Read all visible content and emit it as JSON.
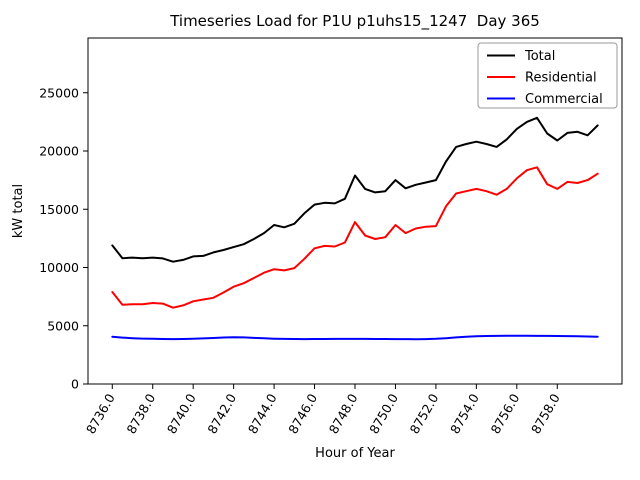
{
  "chart_data": {
    "type": "line",
    "title": "Timeseries Load for P1U p1uhs15_1247  Day 365",
    "xlabel": "Hour of Year",
    "ylabel": "kW total",
    "xlim": [
      8734.8,
      8761.2
    ],
    "ylim": [
      0,
      29700
    ],
    "xticks": [
      8736,
      8738,
      8740,
      8742,
      8744,
      8746,
      8748,
      8750,
      8752,
      8754,
      8756,
      8758
    ],
    "xtick_labels": [
      "8736.0",
      "8738.0",
      "8740.0",
      "8742.0",
      "8744.0",
      "8746.0",
      "8748.0",
      "8750.0",
      "8752.0",
      "8754.0",
      "8756.0",
      "8758.0"
    ],
    "yticks": [
      0,
      5000,
      10000,
      15000,
      20000,
      25000
    ],
    "ytick_labels": [
      "0",
      "5000",
      "10000",
      "15000",
      "20000",
      "25000"
    ],
    "grid": false,
    "legend_position": "upper right",
    "x": [
      8736,
      8736.5,
      8737,
      8737.5,
      8738,
      8738.5,
      8739,
      8739.5,
      8740,
      8740.5,
      8741,
      8741.5,
      8742,
      8742.5,
      8743,
      8743.5,
      8744,
      8744.5,
      8745,
      8745.5,
      8746,
      8746.5,
      8747,
      8747.5,
      8748,
      8748.5,
      8749,
      8749.5,
      8750,
      8750.5,
      8751,
      8751.5,
      8752,
      8752.5,
      8753,
      8753.5,
      8754,
      8754.5,
      8755,
      8755.5,
      8756,
      8756.5,
      8757,
      8757.5,
      8758,
      8758.5,
      8759,
      8759.5,
      8760
    ],
    "series": [
      {
        "name": "Total",
        "color": "#000000",
        "values": [
          11900,
          10800,
          10850,
          10800,
          10850,
          10780,
          10500,
          10650,
          10950,
          11000,
          11300,
          11500,
          11750,
          12000,
          12450,
          12950,
          13650,
          13450,
          13750,
          14650,
          15400,
          15550,
          15500,
          15900,
          17900,
          16750,
          16450,
          16550,
          17500,
          16800,
          17100,
          17300,
          17500,
          19100,
          20350,
          20600,
          20800,
          20600,
          20350,
          21000,
          21900,
          22500,
          22850,
          21500,
          20900,
          21550,
          21650,
          21350,
          22200
        ]
      },
      {
        "name": "Residential",
        "color": "#ff0000",
        "values": [
          7900,
          6800,
          6850,
          6850,
          6950,
          6900,
          6550,
          6750,
          7100,
          7250,
          7400,
          7850,
          8350,
          8650,
          9100,
          9550,
          9850,
          9750,
          9950,
          10750,
          11650,
          11850,
          11800,
          12150,
          13900,
          12750,
          12450,
          12600,
          13650,
          12950,
          13350,
          13500,
          13550,
          15250,
          16350,
          16550,
          16750,
          16550,
          16250,
          16750,
          17650,
          18350,
          18600,
          17150,
          16750,
          17350,
          17250,
          17500,
          18050
        ]
      },
      {
        "name": "Commercial",
        "color": "#0000ff",
        "values": [
          4050,
          3980,
          3930,
          3900,
          3880,
          3860,
          3850,
          3860,
          3880,
          3910,
          3950,
          3990,
          4020,
          4000,
          3960,
          3920,
          3890,
          3870,
          3860,
          3855,
          3860,
          3865,
          3870,
          3875,
          3875,
          3870,
          3865,
          3860,
          3855,
          3850,
          3845,
          3855,
          3880,
          3930,
          4000,
          4060,
          4100,
          4120,
          4130,
          4140,
          4140,
          4135,
          4130,
          4125,
          4120,
          4110,
          4100,
          4080,
          4060
        ]
      }
    ]
  },
  "colors": {
    "background": "#ffffff",
    "spine": "#000000",
    "legend_border": "#999999"
  }
}
